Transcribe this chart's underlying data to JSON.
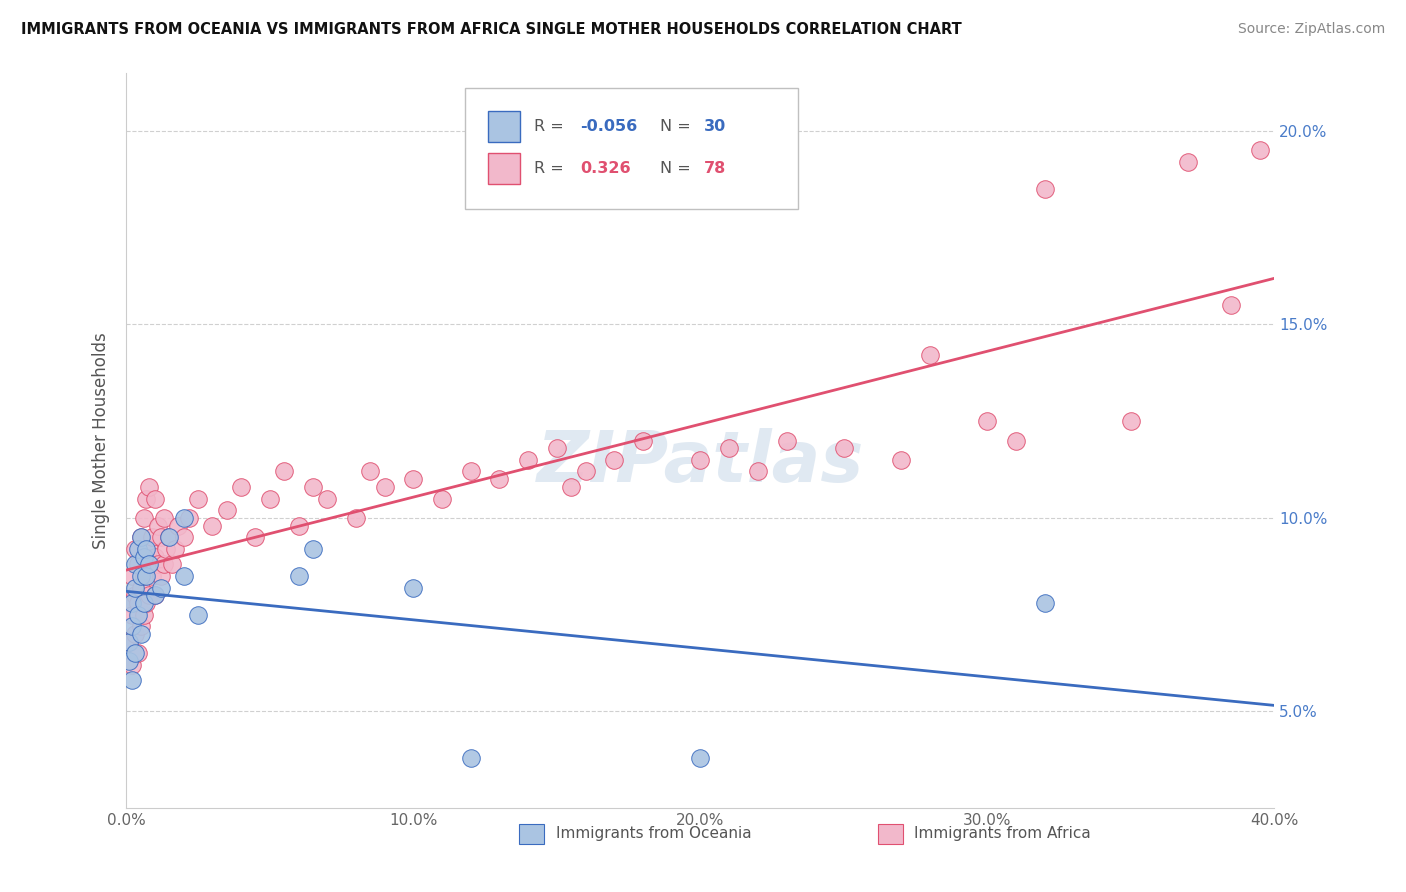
{
  "title": "IMMIGRANTS FROM OCEANIA VS IMMIGRANTS FROM AFRICA SINGLE MOTHER HOUSEHOLDS CORRELATION CHART",
  "source": "Source: ZipAtlas.com",
  "ylabel": "Single Mother Households",
  "legend_label_oceania": "Immigrants from Oceania",
  "legend_label_africa": "Immigrants from Africa",
  "color_oceania": "#aac4e2",
  "color_africa": "#f2b8cb",
  "line_color_oceania": "#3a6bbf",
  "line_color_africa": "#e05070",
  "R_oceania": -0.056,
  "N_oceania": 30,
  "R_africa": 0.326,
  "N_africa": 78,
  "xlim": [
    0.0,
    0.4
  ],
  "ylim": [
    0.025,
    0.215
  ],
  "ytick_vals": [
    0.05,
    0.1,
    0.15,
    0.2
  ],
  "xtick_vals": [
    0.0,
    0.1,
    0.2,
    0.3,
    0.4
  ],
  "oceania_x": [
    0.001,
    0.001,
    0.002,
    0.002,
    0.002,
    0.003,
    0.003,
    0.003,
    0.004,
    0.004,
    0.005,
    0.005,
    0.005,
    0.006,
    0.006,
    0.007,
    0.007,
    0.008,
    0.01,
    0.012,
    0.015,
    0.02,
    0.02,
    0.025,
    0.06,
    0.065,
    0.1,
    0.12,
    0.2,
    0.32
  ],
  "oceania_y": [
    0.068,
    0.063,
    0.072,
    0.078,
    0.058,
    0.065,
    0.082,
    0.088,
    0.075,
    0.092,
    0.07,
    0.085,
    0.095,
    0.078,
    0.09,
    0.085,
    0.092,
    0.088,
    0.08,
    0.082,
    0.095,
    0.1,
    0.085,
    0.075,
    0.085,
    0.092,
    0.082,
    0.038,
    0.038,
    0.078
  ],
  "africa_x": [
    0.001,
    0.001,
    0.002,
    0.002,
    0.002,
    0.003,
    0.003,
    0.003,
    0.004,
    0.004,
    0.004,
    0.005,
    0.005,
    0.005,
    0.006,
    0.006,
    0.006,
    0.007,
    0.007,
    0.007,
    0.008,
    0.008,
    0.008,
    0.009,
    0.009,
    0.01,
    0.01,
    0.01,
    0.011,
    0.011,
    0.012,
    0.012,
    0.013,
    0.013,
    0.014,
    0.015,
    0.016,
    0.017,
    0.018,
    0.02,
    0.022,
    0.025,
    0.03,
    0.035,
    0.04,
    0.045,
    0.05,
    0.055,
    0.06,
    0.065,
    0.07,
    0.08,
    0.085,
    0.09,
    0.1,
    0.11,
    0.12,
    0.13,
    0.14,
    0.15,
    0.155,
    0.16,
    0.17,
    0.18,
    0.2,
    0.21,
    0.22,
    0.23,
    0.25,
    0.27,
    0.28,
    0.3,
    0.31,
    0.32,
    0.35,
    0.37,
    0.385,
    0.395
  ],
  "africa_y": [
    0.068,
    0.078,
    0.062,
    0.075,
    0.085,
    0.07,
    0.08,
    0.092,
    0.065,
    0.078,
    0.088,
    0.072,
    0.082,
    0.095,
    0.075,
    0.085,
    0.1,
    0.078,
    0.09,
    0.105,
    0.08,
    0.092,
    0.108,
    0.085,
    0.095,
    0.08,
    0.09,
    0.105,
    0.088,
    0.098,
    0.085,
    0.095,
    0.088,
    0.1,
    0.092,
    0.095,
    0.088,
    0.092,
    0.098,
    0.095,
    0.1,
    0.105,
    0.098,
    0.102,
    0.108,
    0.095,
    0.105,
    0.112,
    0.098,
    0.108,
    0.105,
    0.1,
    0.112,
    0.108,
    0.11,
    0.105,
    0.112,
    0.11,
    0.115,
    0.118,
    0.108,
    0.112,
    0.115,
    0.12,
    0.115,
    0.118,
    0.112,
    0.12,
    0.118,
    0.115,
    0.142,
    0.125,
    0.12,
    0.185,
    0.125,
    0.192,
    0.155,
    0.195
  ],
  "watermark": "ZIPatlas"
}
